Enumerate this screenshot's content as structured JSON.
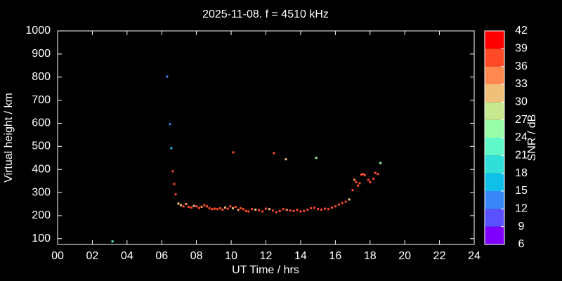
{
  "chart_data": {
    "type": "scatter",
    "title": "2025-11-08. f = 4510 kHz",
    "xlabel": "UT Time / hrs",
    "ylabel": "Virtual height / km",
    "colorbar_label": "SNR / dB",
    "x": [
      3.16,
      6.31,
      6.47,
      6.55,
      6.64,
      6.72,
      6.8,
      6.96,
      7.1,
      7.25,
      7.4,
      7.55,
      7.7,
      7.85,
      8.0,
      8.15,
      8.3,
      8.45,
      8.6,
      8.75,
      8.9,
      9.05,
      9.2,
      9.35,
      9.5,
      9.65,
      9.8,
      9.95,
      10.1,
      10.25,
      10.4,
      10.55,
      10.7,
      10.85,
      11.0,
      11.2,
      11.4,
      11.6,
      11.8,
      12.0,
      12.2,
      12.4,
      12.6,
      12.8,
      13.0,
      13.2,
      13.4,
      13.6,
      13.8,
      14.0,
      14.2,
      14.4,
      14.6,
      14.8,
      15.0,
      15.2,
      15.4,
      15.6,
      15.8,
      16.0,
      16.2,
      16.4,
      16.6,
      10.12,
      12.46,
      13.15,
      14.9,
      16.8,
      17.0,
      17.1,
      17.2,
      17.3,
      17.4,
      17.5,
      17.6,
      17.7,
      17.9,
      18.0,
      18.2,
      18.3,
      18.45,
      18.6
    ],
    "values": [
      88,
      802,
      596,
      492,
      392,
      337,
      292,
      252,
      245,
      240,
      250,
      238,
      235,
      242,
      240,
      233,
      238,
      245,
      240,
      232,
      228,
      230,
      228,
      232,
      226,
      235,
      230,
      240,
      232,
      238,
      225,
      232,
      228,
      220,
      218,
      228,
      226,
      224,
      218,
      230,
      228,
      222,
      215,
      220,
      228,
      225,
      222,
      220,
      225,
      218,
      220,
      226,
      232,
      234,
      228,
      226,
      230,
      228,
      235,
      240,
      248,
      255,
      260,
      474,
      471,
      444,
      450,
      270,
      310,
      355,
      345,
      330,
      340,
      378,
      380,
      375,
      355,
      345,
      360,
      385,
      380,
      428
    ],
    "snr": [
      22,
      12,
      13,
      17,
      38,
      37,
      36,
      30,
      30,
      36,
      33,
      37,
      38,
      31,
      36,
      37,
      33,
      38,
      37,
      36,
      38,
      37,
      36,
      38,
      37,
      31,
      36,
      38,
      30,
      37,
      33,
      36,
      38,
      37,
      36,
      38,
      31,
      37,
      36,
      38,
      30,
      37,
      36,
      38,
      37,
      33,
      36,
      38,
      37,
      36,
      38,
      37,
      36,
      37,
      38,
      36,
      37,
      38,
      36,
      37,
      38,
      36,
      37,
      37,
      37,
      30,
      24,
      30,
      37,
      33,
      36,
      37,
      36,
      38,
      37,
      38,
      36,
      37,
      38,
      37,
      36,
      24
    ],
    "xlim": [
      0,
      24
    ],
    "ylim": [
      75,
      1000
    ],
    "xticks": [
      {
        "value": 0,
        "label": "00"
      },
      {
        "value": 2,
        "label": "02"
      },
      {
        "value": 4,
        "label": "04"
      },
      {
        "value": 6,
        "label": "06"
      },
      {
        "value": 8,
        "label": "08"
      },
      10,
      12,
      14,
      16,
      18,
      20,
      22,
      24
    ],
    "yticks": [
      100,
      200,
      300,
      400,
      500,
      600,
      700,
      800,
      900,
      1000
    ],
    "clim": [
      6,
      42
    ],
    "cticks": [
      6,
      9,
      12,
      15,
      18,
      21,
      24,
      27,
      30,
      33,
      36,
      39,
      42
    ],
    "colormap": [
      "#8000ff",
      "#5a50ff",
      "#3a88f8",
      "#10c0e8",
      "#30e0d8",
      "#60f8c8",
      "#98ffa8",
      "#c8e890",
      "#f0c078",
      "#ff8850",
      "#ff4a28",
      "#ff0000"
    ]
  }
}
